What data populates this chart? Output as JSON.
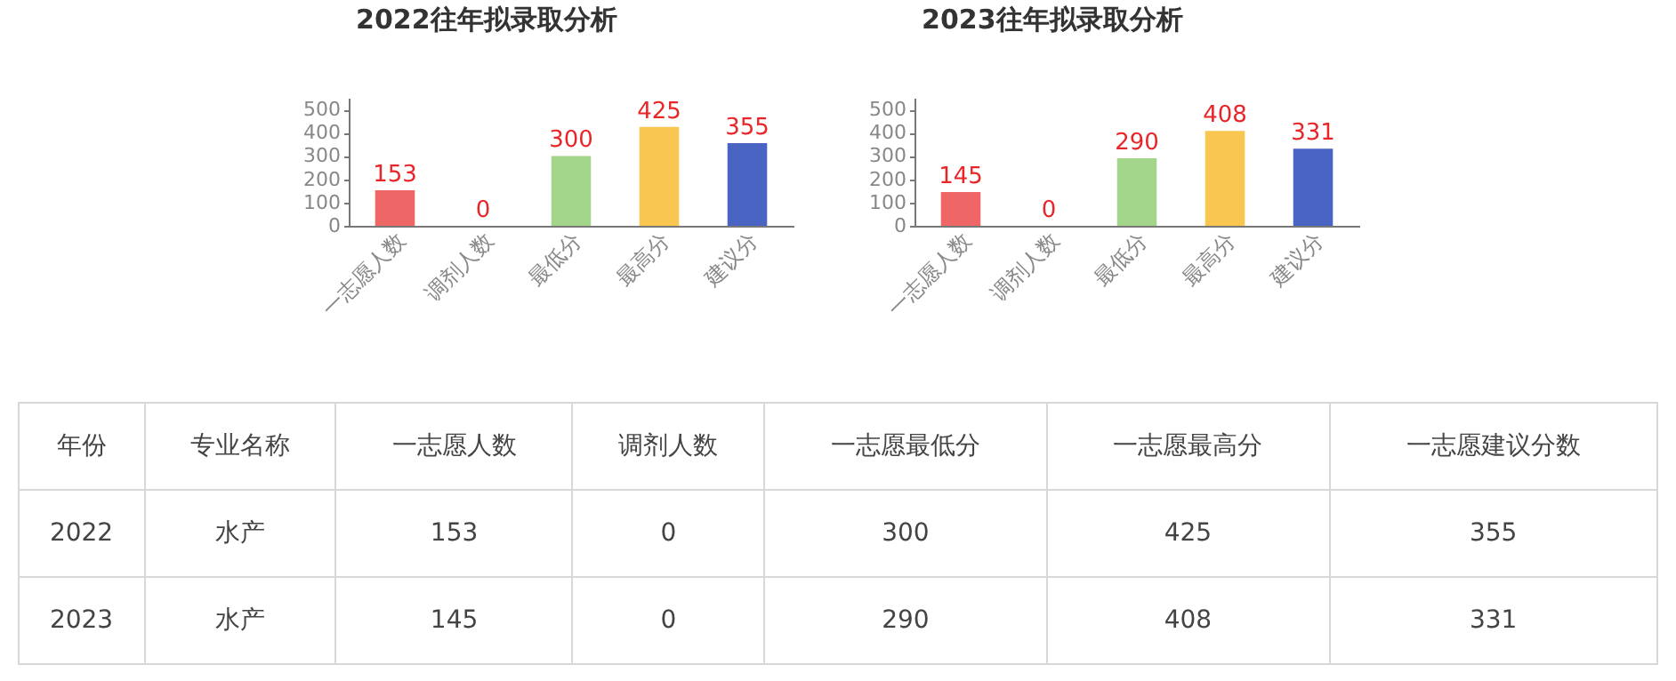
{
  "chart_data": [
    {
      "type": "bar",
      "title": "2022往年拟录取分析",
      "categories": [
        "一志愿人数",
        "调剂人数",
        "最低分",
        "最高分",
        "建议分"
      ],
      "values": [
        153,
        0,
        300,
        425,
        355
      ],
      "colors": [
        "#ee6666",
        "#999999",
        "#a3d68a",
        "#f9c74f",
        "#4a64c4"
      ],
      "ylim": [
        0,
        550
      ],
      "yticks": [
        0,
        100,
        200,
        300,
        400,
        500
      ],
      "data_labels": true,
      "grid": false
    },
    {
      "type": "bar",
      "title": "2023往年拟录取分析",
      "categories": [
        "一志愿人数",
        "调剂人数",
        "最低分",
        "最高分",
        "建议分"
      ],
      "values": [
        145,
        0,
        290,
        408,
        331
      ],
      "colors": [
        "#ee6666",
        "#999999",
        "#a3d68a",
        "#f9c74f",
        "#4a64c4"
      ],
      "ylim": [
        0,
        550
      ],
      "yticks": [
        0,
        100,
        200,
        300,
        400,
        500
      ],
      "data_labels": true,
      "grid": false
    },
    {
      "type": "other",
      "categories": [
        "年份",
        "专业名称",
        "一志愿人数",
        "调剂人数",
        "一志愿最低分",
        "一志愿最高分",
        "一志愿建议分数"
      ],
      "annotations": [
        "2022",
        "水产",
        "153",
        "0",
        "300",
        "425",
        "355",
        "2023",
        "水产",
        "145",
        "0",
        "290",
        "408",
        "331"
      ]
    }
  ]
}
